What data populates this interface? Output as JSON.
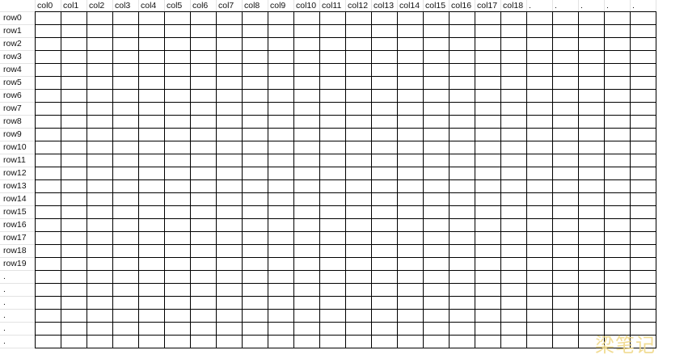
{
  "sheet": {
    "col_headers": [
      "col0",
      "col1",
      "col2",
      "col3",
      "col4",
      "col5",
      "col6",
      "col7",
      "col8",
      "col9",
      "col10",
      "col11",
      "col12",
      "col13",
      "col14",
      "col15",
      "col16",
      "col17",
      "col18",
      ".",
      ".",
      ".",
      ".",
      "."
    ],
    "row_headers": [
      "row0",
      "row1",
      "row2",
      "row3",
      "row4",
      "row5",
      "row6",
      "row7",
      "row8",
      "row9",
      "row10",
      "row11",
      "row12",
      "row13",
      "row14",
      "row15",
      "row16",
      "row17",
      "row18",
      "row19",
      ".",
      ".",
      ".",
      ".",
      ".",
      "."
    ]
  },
  "watermark": {
    "text": "梁笔记"
  },
  "colors": {
    "grid": "#000000",
    "header_grid": "#e3e3e3",
    "watermark": "#f0d98a"
  }
}
